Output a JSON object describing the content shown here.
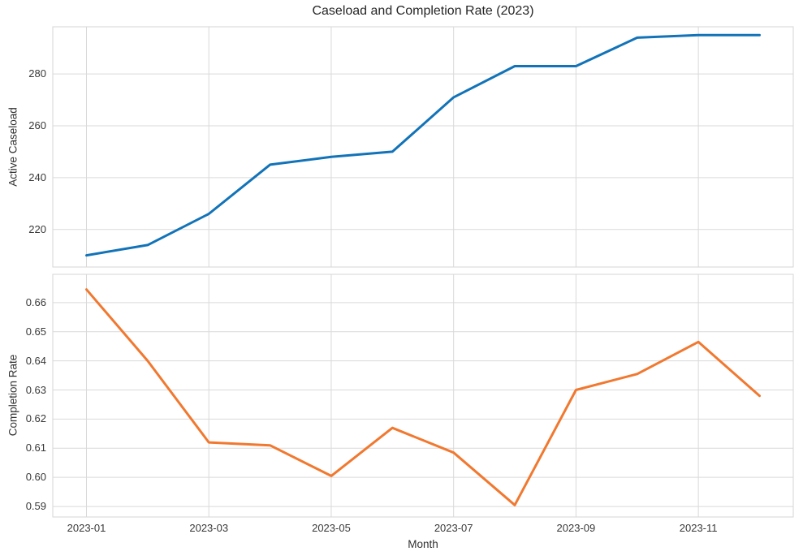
{
  "chart_data": {
    "type": "line",
    "title": "Caseload and Completion Rate (2023)",
    "xlabel": "Month",
    "x": [
      "2023-01",
      "2023-02",
      "2023-03",
      "2023-04",
      "2023-05",
      "2023-06",
      "2023-07",
      "2023-08",
      "2023-09",
      "2023-10",
      "2023-11",
      "2023-12"
    ],
    "x_tick_labels": [
      "2023-01",
      "2023-03",
      "2023-05",
      "2023-07",
      "2023-09",
      "2023-11"
    ],
    "grid": true,
    "grid_color": "#d9d9d9",
    "background": "#ffffff",
    "legend_position": "none",
    "line_width": 3,
    "subplots": [
      {
        "ylabel": "Active Caseload",
        "ylim": [
          205.5,
          298.2
        ],
        "y_ticks": [
          220,
          240,
          260,
          280
        ],
        "y_tick_decimals": 0,
        "series": [
          {
            "name": "Active Caseload",
            "color": "#1273b8",
            "values": [
              210,
              214,
              226,
              245,
              248,
              250,
              271,
              283,
              283,
              294,
              295,
              295
            ]
          }
        ]
      },
      {
        "ylabel": "Completion Rate",
        "ylim": [
          0.5864,
          0.6697
        ],
        "y_ticks": [
          0.59,
          0.6,
          0.61,
          0.62,
          0.63,
          0.64,
          0.65,
          0.66
        ],
        "y_tick_decimals": 2,
        "series": [
          {
            "name": "Completion Rate",
            "color": "#f1782f",
            "values": [
              0.6645,
              0.64,
              0.612,
              0.611,
              0.6005,
              0.617,
              0.6085,
              0.5905,
              0.63,
              0.6355,
              0.6465,
              0.628
            ]
          }
        ]
      }
    ]
  }
}
